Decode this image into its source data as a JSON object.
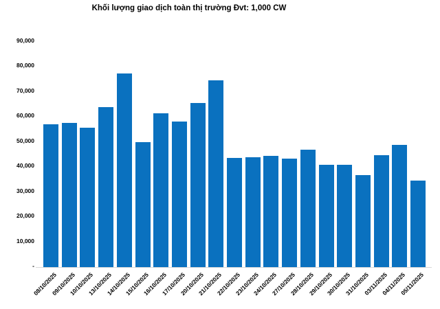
{
  "chart_data": {
    "type": "bar",
    "title": "Khối lượng giao dịch toàn thị trường Đvt: 1,000 CW",
    "categories": [
      "08/10/2025",
      "09/10/2025",
      "10/10/2025",
      "13/10/2025",
      "14/10/2025",
      "15/10/2025",
      "16/10/2025",
      "17/10/2025",
      "20/10/2025",
      "21/10/2025",
      "22/10/2025",
      "23/10/2025",
      "24/10/2025",
      "27/10/2025",
      "28/10/2025",
      "29/10/2025",
      "30/10/2025",
      "31/10/2025",
      "03/11/2025",
      "04/11/2025",
      "05/11/2025"
    ],
    "values": [
      57000,
      57700,
      55700,
      63800,
      77400,
      49900,
      61500,
      58200,
      65600,
      74700,
      43700,
      43900,
      44500,
      43400,
      46800,
      40800,
      40900,
      36800,
      44700,
      48800,
      34700
    ],
    "xlabel": "",
    "ylabel": "",
    "ylim": [
      0,
      90000
    ],
    "ytick_step": 10000,
    "ytick_labels": [
      "-",
      "10,000",
      "20,000",
      "30,000",
      "40,000",
      "50,000",
      "60,000",
      "70,000",
      "80,000",
      "90,000"
    ],
    "grid": false,
    "legend_position": "none",
    "bar_color": "#0a71bf",
    "axis_line_color": "#d9d9d9",
    "text_color": "#000000"
  }
}
